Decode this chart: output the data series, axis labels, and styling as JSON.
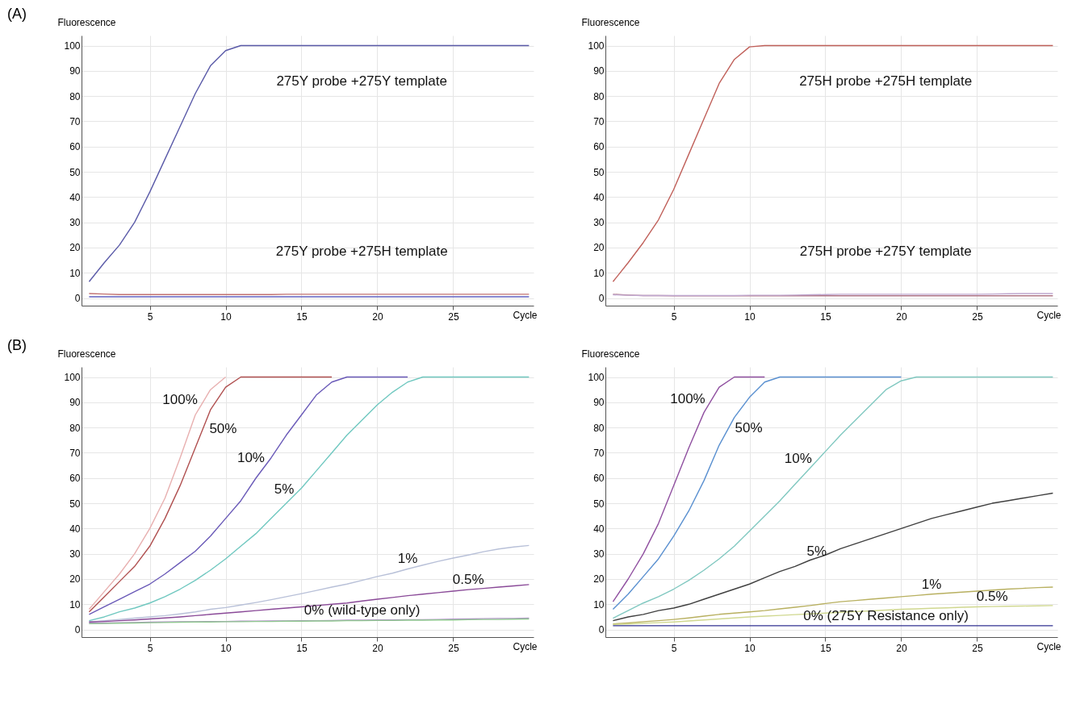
{
  "chart_data": [
    {
      "type": "line",
      "title": "(A)",
      "xlabel": "Cycle",
      "ylabel": "Fluorescence",
      "xlim": [
        0.5,
        30.3
      ],
      "ylim": [
        -3,
        104
      ],
      "xticks": [
        5,
        10,
        15,
        20,
        25
      ],
      "yticks": [
        0,
        10,
        20,
        30,
        40,
        50,
        60,
        70,
        80,
        90,
        100
      ],
      "grid": true,
      "x": [
        1,
        2,
        3,
        4,
        5,
        6,
        7,
        8,
        9,
        10,
        11,
        12,
        13,
        14,
        15,
        16,
        17,
        18,
        19,
        20,
        21,
        22,
        23,
        24,
        25,
        26,
        27,
        28,
        29,
        30
      ],
      "series": [
        {
          "color": "#5a5aa8",
          "values": [
            6.5,
            14,
            21,
            30,
            42,
            55,
            68,
            81,
            92,
            98,
            100,
            100,
            100,
            100,
            100,
            100,
            100,
            100,
            100,
            100,
            100,
            100,
            100,
            100,
            100,
            100,
            100,
            100,
            100,
            100
          ]
        },
        {
          "color": "#c07070",
          "values": [
            1.8,
            1.6,
            1.4,
            1.4,
            1.4,
            1.4,
            1.4,
            1.4,
            1.4,
            1.4,
            1.4,
            1.4,
            1.4,
            1.5,
            1.5,
            1.5,
            1.5,
            1.5,
            1.5,
            1.5,
            1.5,
            1.5,
            1.5,
            1.5,
            1.5,
            1.5,
            1.5,
            1.5,
            1.5,
            1.5
          ]
        },
        {
          "color": "#6060c0",
          "values": [
            0.5,
            0.5,
            0.5,
            0.5,
            0.5,
            0.5,
            0.5,
            0.5,
            0.5,
            0.5,
            0.5,
            0.5,
            0.5,
            0.5,
            0.5,
            0.5,
            0.5,
            0.5,
            0.5,
            0.5,
            0.5,
            0.5,
            0.5,
            0.5,
            0.5,
            0.5,
            0.5,
            0.5,
            0.5,
            0.5
          ]
        }
      ],
      "annotations": [
        "275Y probe +275Y template",
        "275Y probe +275H template"
      ]
    },
    {
      "type": "line",
      "xlabel": "Cycle",
      "ylabel": "Fluorescence",
      "xlim": [
        0.5,
        30.3
      ],
      "ylim": [
        -3,
        104
      ],
      "xticks": [
        5,
        10,
        15,
        20,
        25
      ],
      "yticks": [
        0,
        10,
        20,
        30,
        40,
        50,
        60,
        70,
        80,
        90,
        100
      ],
      "grid": true,
      "x": [
        1,
        2,
        3,
        4,
        5,
        6,
        7,
        8,
        9,
        10,
        11,
        12,
        13,
        14,
        15,
        16,
        17,
        18,
        19,
        20,
        21,
        22,
        23,
        24,
        25,
        26,
        27,
        28,
        29,
        30
      ],
      "series": [
        {
          "color": "#c0605a",
          "values": [
            6.5,
            14,
            22,
            31,
            43,
            57,
            71,
            85,
            94.5,
            99.5,
            100,
            100,
            100,
            100,
            100,
            100,
            100,
            100,
            100,
            100,
            100,
            100,
            100,
            100,
            100,
            100,
            100,
            100,
            100,
            100
          ]
        },
        {
          "color": "#b07888",
          "values": [
            1.5,
            1.2,
            1,
            1,
            0.9,
            0.9,
            0.9,
            0.9,
            0.9,
            0.9,
            0.9,
            0.9,
            0.9,
            0.9,
            0.9,
            0.9,
            0.9,
            0.9,
            0.9,
            0.9,
            0.9,
            0.9,
            0.9,
            0.9,
            0.9,
            0.9,
            0.9,
            0.9,
            0.9,
            0.9
          ]
        },
        {
          "color": "#c0a8d0",
          "values": [
            1.3,
            1.1,
            1,
            1,
            1,
            1,
            1,
            1,
            1,
            1.1,
            1.1,
            1.1,
            1.2,
            1.3,
            1.4,
            1.5,
            1.5,
            1.5,
            1.5,
            1.5,
            1.5,
            1.5,
            1.5,
            1.5,
            1.5,
            1.6,
            1.7,
            1.8,
            1.8,
            1.8
          ]
        }
      ],
      "annotations": [
        "275H probe +275H template",
        "275H probe +275Y template"
      ]
    },
    {
      "type": "line",
      "title": "(B)",
      "xlabel": "Cycle",
      "ylabel": "Fluorescence",
      "xlim": [
        0.5,
        30.3
      ],
      "ylim": [
        -3,
        104
      ],
      "xticks": [
        5,
        10,
        15,
        20,
        25
      ],
      "yticks": [
        0,
        10,
        20,
        30,
        40,
        50,
        60,
        70,
        80,
        90,
        100
      ],
      "grid": true,
      "x": [
        1,
        2,
        3,
        4,
        5,
        6,
        7,
        8,
        9,
        10,
        11,
        12,
        13,
        14,
        15,
        16,
        17,
        18,
        19,
        20,
        21,
        22,
        23,
        24,
        25,
        26,
        27,
        28,
        29,
        30
      ],
      "series": [
        {
          "name": "100%",
          "color": "#e8b0b0",
          "values": [
            8,
            15,
            22,
            30,
            40,
            52,
            68,
            85,
            95,
            100,
            null,
            null,
            null,
            null,
            null,
            null,
            null,
            null,
            null,
            null,
            null,
            null,
            null,
            null,
            null,
            null,
            null,
            null,
            null,
            null
          ]
        },
        {
          "name": "50%",
          "color": "#b05050",
          "values": [
            7,
            13,
            19,
            25,
            33,
            44,
            57,
            72,
            87,
            96,
            100,
            100,
            100,
            100,
            100,
            100,
            100,
            null,
            null,
            null,
            null,
            null,
            null,
            null,
            null,
            null,
            null,
            null,
            null,
            null
          ]
        },
        {
          "name": "10%",
          "color": "#6a5ab8",
          "values": [
            6,
            9,
            12,
            15,
            18,
            22,
            26.5,
            31,
            37,
            44,
            51,
            60,
            68,
            77,
            85,
            93,
            98,
            100,
            100,
            100,
            100,
            100,
            null,
            null,
            null,
            null,
            null,
            null,
            null,
            null
          ]
        },
        {
          "name": "5%",
          "color": "#70c8c0",
          "values": [
            3.5,
            5,
            7,
            8.5,
            10.5,
            13,
            16,
            19.5,
            23.5,
            28,
            33,
            38,
            44,
            50,
            56,
            63,
            70,
            77,
            83,
            89,
            94,
            98,
            100,
            100,
            100,
            100,
            100,
            100,
            100,
            100
          ]
        },
        {
          "name": "1%",
          "color": "#b8c0d8",
          "values": [
            3,
            3.5,
            4,
            4.5,
            5,
            5.5,
            6.2,
            7,
            8,
            8.7,
            9.7,
            10.7,
            11.8,
            13,
            14.2,
            15.5,
            16.8,
            18,
            19.5,
            21,
            22.3,
            24,
            25.5,
            27,
            28.3,
            29.5,
            30.8,
            31.9,
            32.7,
            33.3
          ]
        },
        {
          "name": "0.5%",
          "color": "#8a4a98",
          "values": [
            3,
            3.2,
            3.5,
            3.8,
            4.2,
            4.6,
            5,
            5.5,
            6,
            6.5,
            7,
            7.5,
            8,
            8.5,
            9,
            9.5,
            10,
            10.5,
            11.3,
            12,
            12.7,
            13.4,
            14,
            14.6,
            15.2,
            15.8,
            16.3,
            16.8,
            17.3,
            17.8
          ]
        },
        {
          "name": "0% (wild-type only)",
          "color": "#b090c8",
          "values": [
            2.5,
            2.6,
            2.7,
            2.8,
            2.9,
            3,
            3.1,
            3.1,
            3.2,
            3.2,
            3.3,
            3.3,
            3.4,
            3.4,
            3.5,
            3.5,
            3.6,
            3.7,
            3.7,
            3.8,
            3.8,
            3.9,
            3.9,
            4,
            4.1,
            4.2,
            4.3,
            4.4,
            4.4,
            4.5
          ]
        },
        {
          "color": "#90c890",
          "values": [
            2.3,
            2.4,
            2.5,
            2.6,
            2.7,
            2.8,
            2.9,
            3,
            3,
            3.1,
            3.1,
            3.2,
            3.2,
            3.3,
            3.3,
            3.4,
            3.4,
            3.5,
            3.5,
            3.6,
            3.6,
            3.7,
            3.7,
            3.8,
            3.8,
            3.9,
            4,
            4,
            4.1,
            4.2
          ]
        }
      ]
    },
    {
      "type": "line",
      "xlabel": "Cycle",
      "ylabel": "Fluorescence",
      "xlim": [
        0.5,
        30.3
      ],
      "ylim": [
        -3,
        104
      ],
      "xticks": [
        5,
        10,
        15,
        20,
        25
      ],
      "yticks": [
        0,
        10,
        20,
        30,
        40,
        50,
        60,
        70,
        80,
        90,
        100
      ],
      "grid": true,
      "x": [
        1,
        2,
        3,
        4,
        5,
        6,
        7,
        8,
        9,
        10,
        11,
        12,
        13,
        14,
        15,
        16,
        17,
        18,
        19,
        20,
        21,
        22,
        23,
        24,
        25,
        26,
        27,
        28,
        29,
        30
      ],
      "series": [
        {
          "name": "100%",
          "color": "#9050a0",
          "values": [
            11,
            20,
            30,
            42,
            57,
            72,
            86,
            96,
            100,
            100,
            100,
            null,
            null,
            null,
            null,
            null,
            null,
            null,
            null,
            null,
            null,
            null,
            null,
            null,
            null,
            null,
            null,
            null,
            null,
            null
          ]
        },
        {
          "name": "50%",
          "color": "#5a90d0",
          "values": [
            8,
            14,
            21,
            28,
            37,
            47,
            59,
            73,
            84,
            92,
            98,
            100,
            100,
            100,
            100,
            100,
            100,
            100,
            100,
            100,
            null,
            null,
            null,
            null,
            null,
            null,
            null,
            null,
            null,
            null
          ]
        },
        {
          "name": "10%",
          "color": "#80c8c0",
          "values": [
            4.5,
            7.5,
            10.5,
            13,
            16,
            19.5,
            23.5,
            28,
            33,
            39,
            45,
            51,
            57.5,
            64,
            70.5,
            77,
            83,
            89,
            95,
            98.5,
            100,
            100,
            100,
            100,
            100,
            100,
            100,
            100,
            100,
            100
          ]
        },
        {
          "name": "5%",
          "color": "#404040",
          "values": [
            3.5,
            5,
            6,
            7.5,
            8.5,
            10,
            12,
            14,
            16,
            18,
            20.5,
            23,
            25,
            27.5,
            29.5,
            32,
            34,
            36,
            38,
            40,
            42,
            44,
            45.5,
            47,
            48.5,
            50,
            51,
            52,
            53,
            54
          ]
        },
        {
          "name": "1%",
          "color": "#b8b060",
          "values": [
            2.2,
            2.6,
            3.1,
            3.5,
            4,
            4.6,
            5.3,
            6,
            6.5,
            7,
            7.5,
            8.2,
            8.8,
            9.5,
            10.3,
            11,
            11.5,
            12,
            12.5,
            13,
            13.5,
            14,
            14.4,
            14.8,
            15.2,
            15.6,
            16,
            16.3,
            16.6,
            16.8
          ]
        },
        {
          "name": "0.5%",
          "color": "#d0d890",
          "values": [
            2,
            2.2,
            2.5,
            2.7,
            3,
            3.4,
            3.8,
            4.2,
            4.6,
            5,
            5.3,
            5.6,
            5.9,
            6.2,
            6.5,
            6.8,
            7.1,
            7.4,
            7.7,
            8,
            8.2,
            8.4,
            8.6,
            8.8,
            9,
            9.1,
            9.2,
            9.3,
            9.4,
            9.5
          ]
        },
        {
          "name": "0% (275Y Resistance only)",
          "color": "#303090",
          "values": [
            1.5,
            1.5,
            1.5,
            1.5,
            1.5,
            1.5,
            1.5,
            1.5,
            1.5,
            1.5,
            1.5,
            1.5,
            1.5,
            1.5,
            1.5,
            1.5,
            1.5,
            1.5,
            1.5,
            1.5,
            1.5,
            1.5,
            1.5,
            1.5,
            1.5,
            1.5,
            1.5,
            1.5,
            1.5,
            1.5
          ]
        }
      ]
    }
  ]
}
